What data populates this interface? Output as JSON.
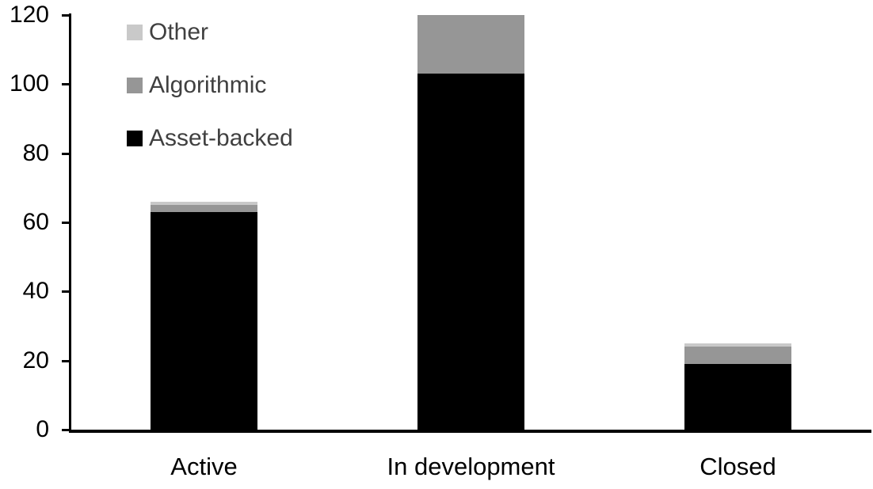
{
  "chart_data": {
    "type": "bar",
    "stacked": true,
    "title": "",
    "xlabel": "",
    "ylabel": "",
    "categories": [
      "Active",
      "In development",
      "Closed"
    ],
    "series": [
      {
        "name": "Asset-backed",
        "color": "#000000",
        "values": [
          63,
          103,
          19
        ]
      },
      {
        "name": "Algorithmic",
        "color": "#969696",
        "values": [
          2,
          17,
          5
        ]
      },
      {
        "name": "Other",
        "color": "#c9c9c9",
        "values": [
          1,
          0,
          1
        ]
      }
    ],
    "stack_totals": [
      66,
      120,
      25
    ],
    "ylim": [
      0,
      120
    ],
    "yticks": [
      0,
      20,
      40,
      60,
      80,
      100,
      120
    ],
    "grid": false,
    "legend_position": "top-left",
    "legend_order": [
      "Other",
      "Algorithmic",
      "Asset-backed"
    ]
  },
  "colors": {
    "background": "#ffffff",
    "axis": "#000000",
    "axis_label": "#000000",
    "legend_text": "#404040"
  }
}
